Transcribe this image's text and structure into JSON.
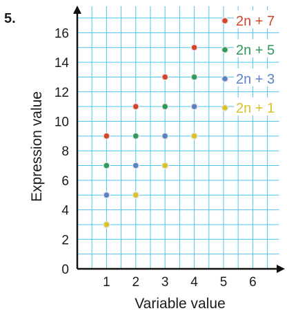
{
  "problem_number": "5.",
  "chart_data": {
    "type": "scatter",
    "xlabel": "Variable value",
    "ylabel": "Expression value",
    "xlim": [
      0,
      6.9
    ],
    "ylim": [
      0,
      17.8
    ],
    "x_ticks": [
      "1",
      "2",
      "3",
      "4",
      "5",
      "6"
    ],
    "y_ticks": [
      "0",
      "2",
      "4",
      "6",
      "8",
      "10",
      "12",
      "14",
      "16"
    ],
    "grid": true,
    "legend_position": "top-right",
    "series": [
      {
        "name": "2n + 7",
        "color": "#d2452a",
        "points": [
          [
            1,
            9
          ],
          [
            2,
            11
          ],
          [
            3,
            13
          ],
          [
            4,
            15
          ]
        ]
      },
      {
        "name": "2n + 5",
        "color": "#2e9a5a",
        "points": [
          [
            1,
            7
          ],
          [
            2,
            9
          ],
          [
            3,
            11
          ],
          [
            4,
            13
          ]
        ]
      },
      {
        "name": "2n + 3",
        "color": "#5b82c2",
        "points": [
          [
            1,
            5
          ],
          [
            2,
            7
          ],
          [
            3,
            9
          ],
          [
            4,
            11
          ]
        ]
      },
      {
        "name": "2n + 1",
        "color": "#d8c226",
        "points": [
          [
            1,
            3
          ],
          [
            2,
            5
          ],
          [
            3,
            7
          ],
          [
            4,
            9
          ]
        ]
      }
    ]
  }
}
